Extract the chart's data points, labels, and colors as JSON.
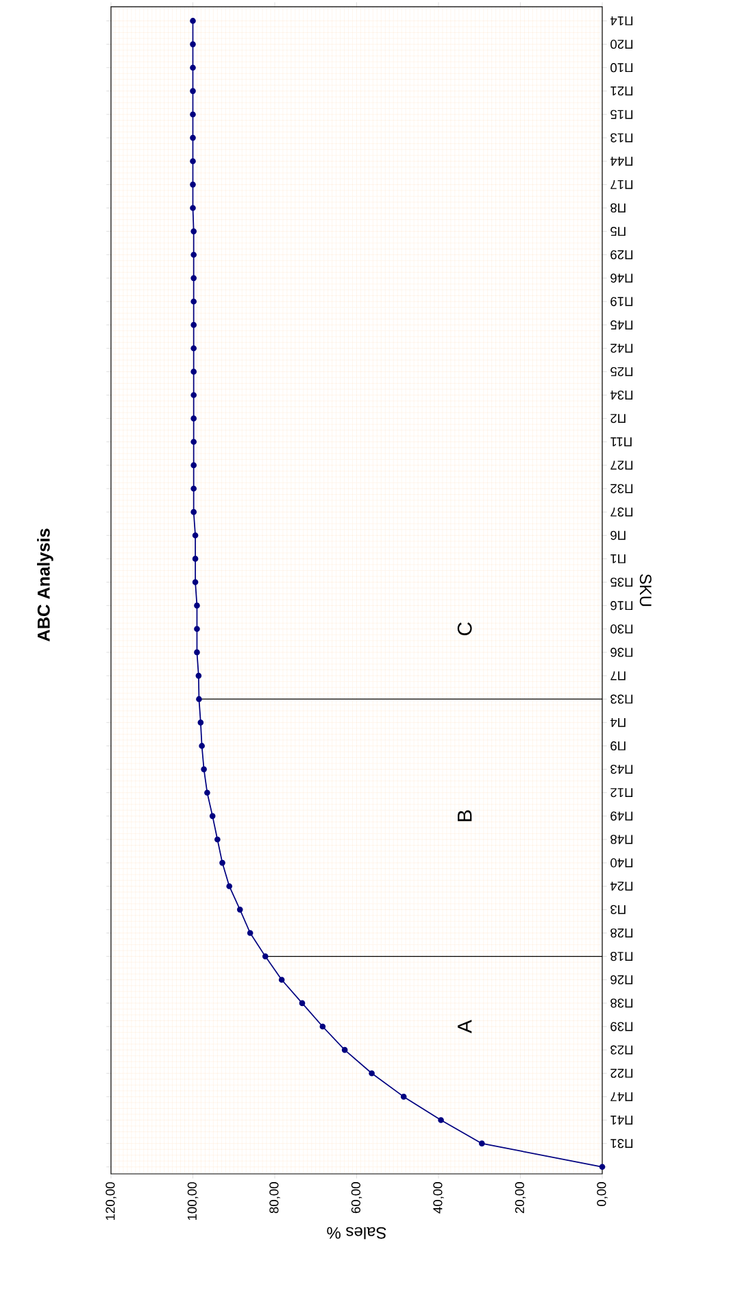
{
  "chart_data": {
    "type": "line",
    "orientation": "horizontal",
    "title": "ABC Analysis",
    "xlabel": "Sales %",
    "ylabel": "SKU",
    "categories": [
      "Π14",
      "Π20",
      "Π10",
      "Π21",
      "Π15",
      "Π13",
      "Π44",
      "Π17",
      "Π8",
      "Π5",
      "Π29",
      "Π46",
      "Π19",
      "Π45",
      "Π42",
      "Π25",
      "Π34",
      "Π2",
      "Π11",
      "Π27",
      "Π32",
      "Π37",
      "Π6",
      "Π1",
      "Π35",
      "Π16",
      "Π30",
      "Π36",
      "Π7",
      "Π33",
      "Π4",
      "Π9",
      "Π43",
      "Π12",
      "Π49",
      "Π48",
      "Π40",
      "Π24",
      "Π3",
      "Π28",
      "Π18",
      "Π26",
      "Π38",
      "Π39",
      "Π23",
      "Π22",
      "Π47",
      "Π41",
      "Π31",
      null
    ],
    "values": [
      100,
      100,
      100,
      100,
      100,
      100,
      100,
      100,
      100,
      99.8,
      99.8,
      99.8,
      99.8,
      99.8,
      99.8,
      99.8,
      99.8,
      99.8,
      99.8,
      99.8,
      99.8,
      99.8,
      99.4,
      99.4,
      99.4,
      99.0,
      99.0,
      99.0,
      98.6,
      98.5,
      98.1,
      97.8,
      97.3,
      96.5,
      95.2,
      94.0,
      92.8,
      91.1,
      88.5,
      86.0,
      82.3,
      78.3,
      73.3,
      68.3,
      62.9,
      56.3,
      48.5,
      39.4,
      29.4,
      0
    ],
    "color": "#000080",
    "marker": "circle",
    "line_style": "solid",
    "grid": true,
    "xlim": [
      120,
      0
    ],
    "xticks": [
      {
        "value": 0,
        "label": "0,00"
      },
      {
        "value": 20,
        "label": "20,00"
      },
      {
        "value": 40,
        "label": "40,00"
      },
      {
        "value": 60,
        "label": "60,00"
      },
      {
        "value": 80,
        "label": "80,00"
      },
      {
        "value": 100,
        "label": "100,00"
      },
      {
        "value": 120,
        "label": "120,00"
      }
    ],
    "ref_lines": [
      {
        "axis": "y",
        "value": "Π18",
        "color": "#000000"
      },
      {
        "axis": "y",
        "value": "Π33",
        "color": "#000000"
      }
    ],
    "annotations": [
      "A",
      "B",
      "C"
    ]
  }
}
